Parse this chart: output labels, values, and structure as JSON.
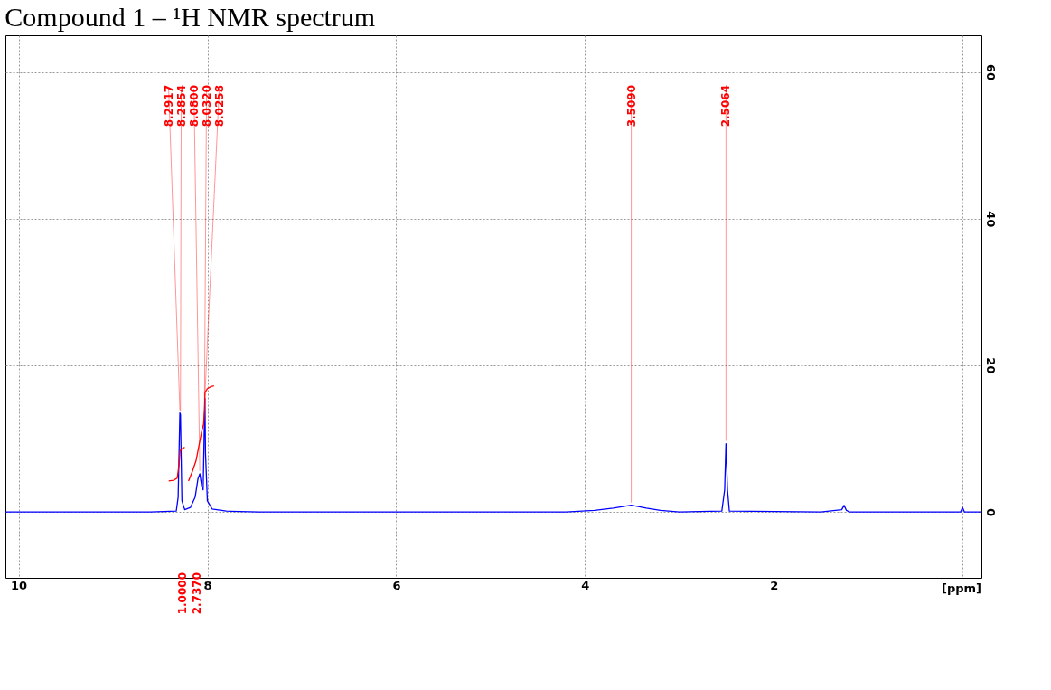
{
  "chart_data": {
    "type": "line",
    "title": "Compound 1 – ¹H NMR spectrum",
    "xlabel": "[ppm]",
    "xlim": [
      10.14,
      -0.2
    ],
    "xticks": [
      10,
      8,
      6,
      4,
      2,
      {
        "value": 0,
        "label": null
      }
    ],
    "ylim": [
      -9,
      65
    ],
    "yticks": [
      0,
      20,
      40,
      60
    ],
    "grid": true,
    "line_style": "solid",
    "marker": "none",
    "series": [
      {
        "color": "#0000ff",
        "x": [
          10.14,
          8.6,
          8.33,
          8.31,
          8.2917,
          8.2854,
          8.27,
          8.24,
          8.18,
          8.13,
          8.1,
          8.08,
          8.06,
          8.045,
          8.032,
          8.0258,
          8.02,
          8.0,
          7.95,
          7.8,
          7.45,
          6.0,
          4.2,
          3.9,
          3.7,
          3.509,
          3.35,
          3.2,
          3.0,
          2.55,
          2.52,
          2.5064,
          2.49,
          2.47,
          1.5,
          1.28,
          1.255,
          1.23,
          1.2,
          0.02,
          0.0,
          -0.02,
          -0.2
        ],
        "values": [
          0,
          0,
          0.1,
          2,
          13.5,
          13.3,
          1.5,
          0.3,
          0.6,
          2,
          4.5,
          5.2,
          3.5,
          3,
          12,
          15.5,
          8,
          1.5,
          0.4,
          0.1,
          0,
          0,
          0,
          0.2,
          0.5,
          0.9,
          0.5,
          0.2,
          0,
          0.1,
          3,
          9.3,
          3,
          0.1,
          0,
          0.3,
          0.9,
          0.2,
          0,
          0,
          0.6,
          0,
          0
        ]
      },
      {
        "color": "#ff0000",
        "x": [
          8.41,
          8.36,
          8.32,
          8.3,
          8.29,
          8.27,
          8.24
        ],
        "values": [
          4.2,
          4.3,
          4.6,
          6.5,
          8.3,
          8.6,
          8.8
        ]
      },
      {
        "color": "#ff0000",
        "x": [
          8.2,
          8.16,
          8.12,
          8.09,
          8.06,
          8.04,
          8.03,
          8.025,
          8.0,
          7.96,
          7.93
        ],
        "values": [
          4.2,
          5.5,
          7,
          9,
          11,
          12,
          14,
          16.3,
          16.8,
          17.1,
          17.2
        ]
      }
    ],
    "annotations": [
      {
        "text": "8.2917",
        "x": 8.2917,
        "y": 13.5
      },
      {
        "text": "8.2854",
        "x": 8.2854,
        "y": 13.3
      },
      {
        "text": "8.0800",
        "x": 8.08,
        "y": 5.2
      },
      {
        "text": "8.0320",
        "x": 8.032,
        "y": 12
      },
      {
        "text": "8.0258",
        "x": 8.0258,
        "y": 15.5
      },
      {
        "text": "3.5090",
        "x": 3.509,
        "y": 0.9
      },
      {
        "text": "2.5064",
        "x": 2.5064,
        "y": 9.3
      },
      "1.0000",
      "2.7370"
    ]
  }
}
